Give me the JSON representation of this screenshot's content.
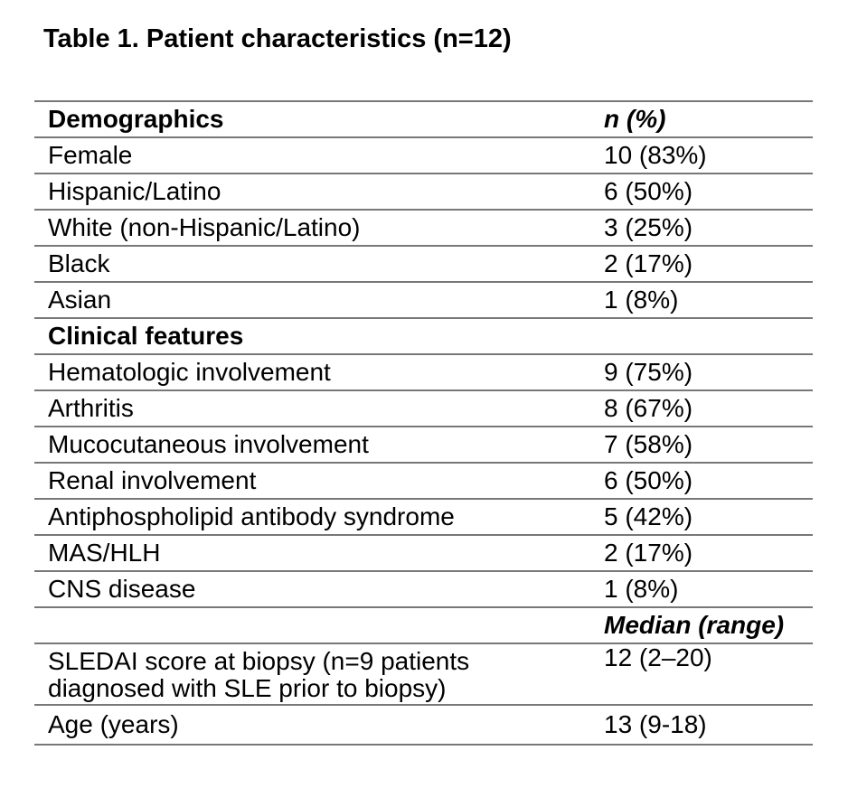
{
  "page": {
    "title": "Table 1. Patient characteristics (n=12)"
  },
  "colors": {
    "rule": "#787878",
    "text": "#000000",
    "background": "#ffffff"
  },
  "table": {
    "rows": [
      {
        "kind": "header",
        "label": "Demographics",
        "value": "n (%)"
      },
      {
        "kind": "data",
        "label": "Female",
        "value": "10 (83%)"
      },
      {
        "kind": "data",
        "label": "Hispanic/Latino",
        "value": "6 (50%)"
      },
      {
        "kind": "data",
        "label": "White (non-Hispanic/Latino)",
        "value": "3 (25%)"
      },
      {
        "kind": "data",
        "label": "Black",
        "value": "2 (17%)"
      },
      {
        "kind": "data",
        "label": "Asian",
        "value": "1 (8%)"
      },
      {
        "kind": "section",
        "label": "Clinical features",
        "value": ""
      },
      {
        "kind": "data",
        "label": "Hematologic involvement",
        "value": "9 (75%)"
      },
      {
        "kind": "data",
        "label": "Arthritis",
        "value": "8 (67%)"
      },
      {
        "kind": "data",
        "label": "Mucocutaneous involvement",
        "value": "7 (58%)"
      },
      {
        "kind": "data",
        "label": "Renal involvement",
        "value": "6 (50%)"
      },
      {
        "kind": "data",
        "label": "Antiphospholipid antibody syndrome",
        "value": "5 (42%)"
      },
      {
        "kind": "data",
        "label": "MAS/HLH",
        "value": "2 (17%)"
      },
      {
        "kind": "data",
        "label": "CNS disease",
        "value": "1 (8%)"
      },
      {
        "kind": "measure-header",
        "label": "",
        "value": "Median (range)"
      },
      {
        "kind": "data-tall",
        "label": "SLEDAI score at biopsy (n=9 patients diagnosed with SLE prior to biopsy)",
        "value": "12 (2–20)"
      },
      {
        "kind": "data-last",
        "label": "Age (years)",
        "value": "13 (9-18)"
      }
    ]
  }
}
